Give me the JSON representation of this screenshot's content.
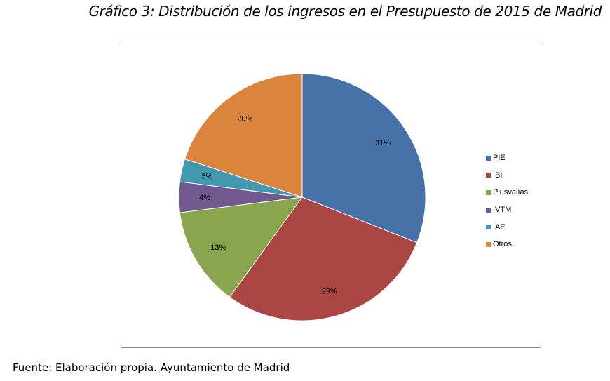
{
  "header": {
    "title": "Gráfico 3: Distribución de los ingresos en el Presupuesto de 2015 de Madrid"
  },
  "footer": {
    "source": "Fuente: Elaboración propia. Ayuntamiento de Madrid"
  },
  "chart_data": {
    "type": "pie",
    "title": "Gráfico 3: Distribución de los ingresos en el Presupuesto de 2015 de Madrid",
    "categories": [
      "PIE",
      "IBI",
      "Plusvalías",
      "IVTM",
      "IAE",
      "Otros"
    ],
    "values": [
      31,
      29,
      13,
      4,
      3,
      20
    ],
    "labels": [
      "31%",
      "29%",
      "13%",
      "4%",
      "3%",
      "20%"
    ],
    "colors": [
      "#4672a8",
      "#aa4643",
      "#89a54e",
      "#71588f",
      "#4198af",
      "#db843d"
    ],
    "legend_position": "right"
  }
}
